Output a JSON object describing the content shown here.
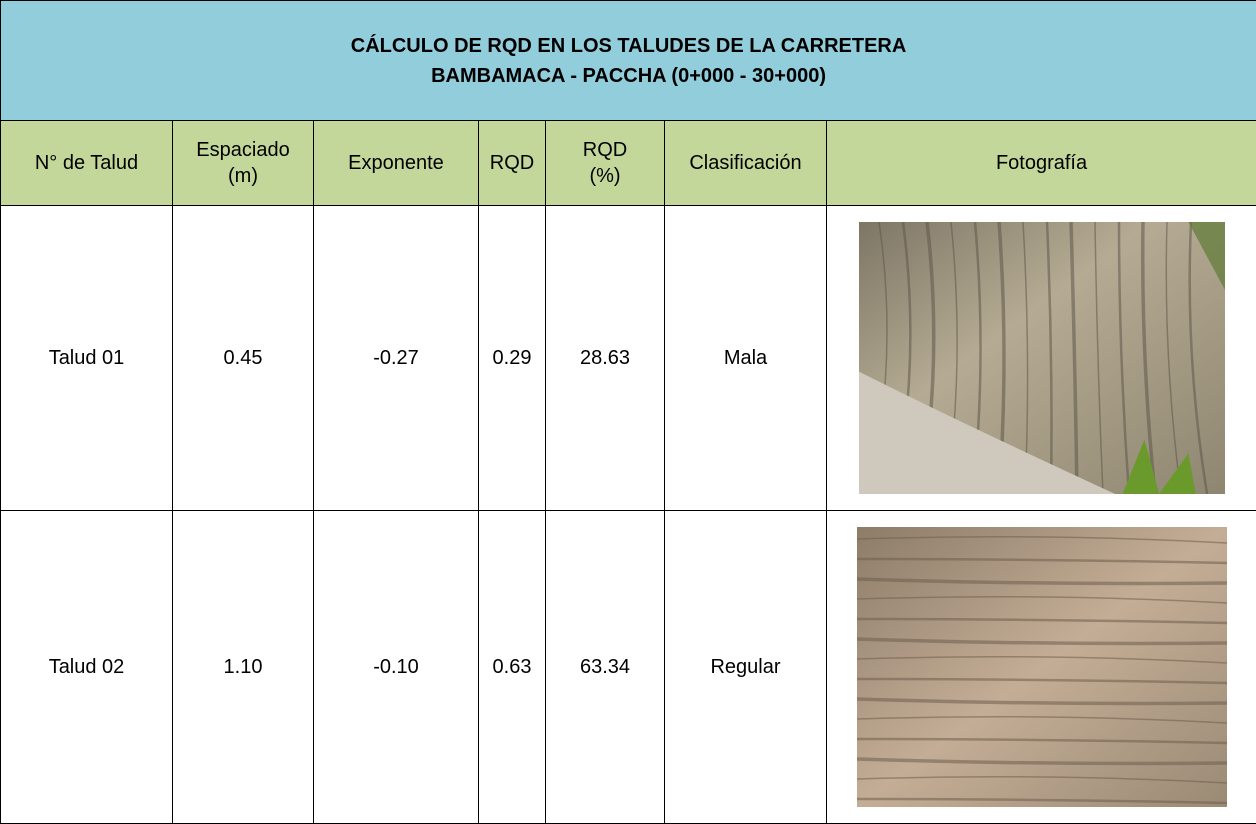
{
  "title": {
    "lines": [
      "CÁLCULO DE RQD EN LOS TALUDES DE LA CARRETERA",
      "BAMBAMACA - PACCHA (0+000 - 30+000)"
    ]
  },
  "table": {
    "header": [
      [
        "N° de Talud"
      ],
      [
        "Espaciado",
        "(m)"
      ],
      [
        "Exponente"
      ],
      [
        "RQD"
      ],
      [
        "RQD",
        "(%)"
      ],
      [
        "Clasificación"
      ],
      [
        "Fotografía"
      ]
    ],
    "rows": [
      [
        "Talud 01",
        "0.45",
        "-0.27",
        "0.29",
        "28.63",
        "Mala"
      ],
      [
        "Talud 02",
        "1.10",
        "-0.10",
        "0.63",
        "63.34",
        "Regular"
      ]
    ]
  }
}
